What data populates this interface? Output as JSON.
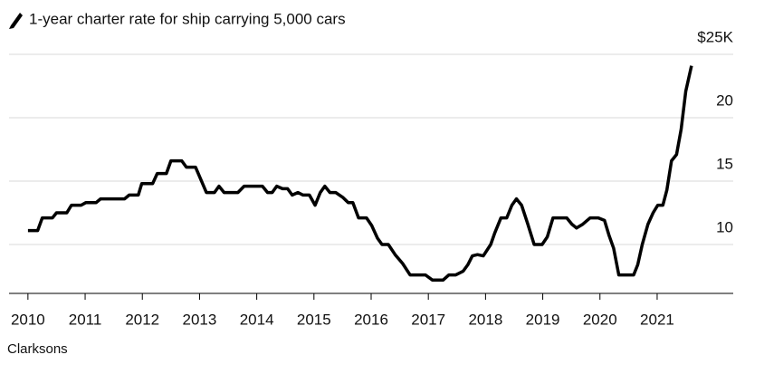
{
  "chart_data": {
    "type": "line",
    "title": "1-year charter rate for ship carrying 5,000 cars",
    "source": "Clarksons",
    "x": [
      2010.0,
      2010.17,
      2010.25,
      2010.43,
      2010.5,
      2010.68,
      2010.76,
      2010.93,
      2011.01,
      2011.19,
      2011.27,
      2011.69,
      2011.77,
      2011.93,
      2011.99,
      2012.18,
      2012.26,
      2012.42,
      2012.5,
      2012.69,
      2012.77,
      2012.93,
      2013.12,
      2013.26,
      2013.34,
      2013.43,
      2013.67,
      2013.78,
      2014.1,
      2014.19,
      2014.27,
      2014.35,
      2014.45,
      2014.54,
      2014.62,
      2014.72,
      2014.81,
      2014.92,
      2015.02,
      2015.11,
      2015.19,
      2015.28,
      2015.38,
      2015.51,
      2015.6,
      2015.68,
      2015.78,
      2015.92,
      2016.01,
      2016.11,
      2016.19,
      2016.3,
      2016.42,
      2016.55,
      2016.68,
      2016.95,
      2017.07,
      2017.26,
      2017.36,
      2017.48,
      2017.61,
      2017.69,
      2017.77,
      2017.86,
      2017.96,
      2018.09,
      2018.16,
      2018.27,
      2018.37,
      2018.46,
      2018.54,
      2018.63,
      2018.74,
      2018.85,
      2018.99,
      2019.08,
      2019.18,
      2019.42,
      2019.51,
      2019.59,
      2019.7,
      2019.83,
      2019.97,
      2020.08,
      2020.16,
      2020.24,
      2020.33,
      2020.59,
      2020.66,
      2020.74,
      2020.84,
      2020.93,
      2021.01,
      2021.1,
      2021.17,
      2021.25,
      2021.34,
      2021.42,
      2021.5,
      2021.6
    ],
    "series": [
      {
        "name": "1-year charter rate",
        "color": "#000000",
        "values": [
          11.1,
          11.1,
          12.1,
          12.1,
          12.5,
          12.5,
          13.1,
          13.1,
          13.3,
          13.3,
          13.6,
          13.6,
          13.9,
          13.9,
          14.8,
          14.8,
          15.6,
          15.6,
          16.6,
          16.6,
          16.1,
          16.1,
          14.1,
          14.1,
          14.6,
          14.1,
          14.1,
          14.6,
          14.6,
          14.1,
          14.1,
          14.6,
          14.4,
          14.4,
          13.9,
          14.1,
          13.9,
          13.9,
          13.1,
          14.1,
          14.6,
          14.1,
          14.1,
          13.7,
          13.3,
          13.3,
          12.1,
          12.1,
          11.5,
          10.5,
          10.0,
          10.0,
          9.2,
          8.5,
          7.6,
          7.6,
          7.2,
          7.2,
          7.6,
          7.6,
          7.9,
          8.4,
          9.1,
          9.2,
          9.1,
          10.0,
          10.9,
          12.1,
          12.1,
          13.1,
          13.6,
          13.1,
          11.6,
          10.0,
          10.0,
          10.6,
          12.1,
          12.1,
          11.6,
          11.3,
          11.6,
          12.1,
          12.1,
          11.9,
          10.7,
          9.7,
          7.6,
          7.6,
          8.4,
          10.0,
          11.6,
          12.5,
          13.1,
          13.1,
          14.3,
          16.6,
          17.1,
          19.1,
          22.1,
          24.1
        ]
      }
    ],
    "xlim": [
      2009.67,
      2022.33
    ],
    "xticks": [
      2010,
      2011,
      2012,
      2013,
      2014,
      2015,
      2016,
      2017,
      2018,
      2019,
      2020,
      2021
    ],
    "ylim": [
      6.14,
      25
    ],
    "yticks": [
      10,
      15,
      20,
      {
        "value": 25,
        "label": "$25K"
      }
    ],
    "grid": true
  }
}
